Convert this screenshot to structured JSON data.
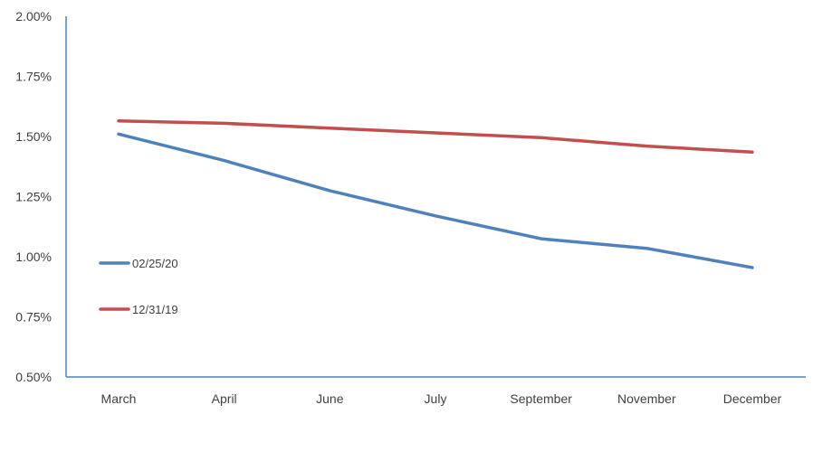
{
  "chart_data": {
    "type": "line",
    "title": "",
    "xlabel": "",
    "ylabel": "",
    "categories": [
      "March",
      "April",
      "June",
      "July",
      "September",
      "November",
      "December"
    ],
    "y_ticks": [
      "0.50%",
      "0.75%",
      "1.00%",
      "1.25%",
      "1.50%",
      "1.75%",
      "2.00%"
    ],
    "ylim": [
      0.5,
      2.0
    ],
    "grid": false,
    "legend_position": "left",
    "series": [
      {
        "name": "02/25/20",
        "color": "#4F81BD",
        "values": [
          1.51,
          1.4,
          1.275,
          1.17,
          1.075,
          1.035,
          0.955
        ]
      },
      {
        "name": "12/31/19",
        "color": "#C0504D",
        "values": [
          1.565,
          1.555,
          1.535,
          1.515,
          1.495,
          1.46,
          1.435
        ]
      }
    ]
  }
}
